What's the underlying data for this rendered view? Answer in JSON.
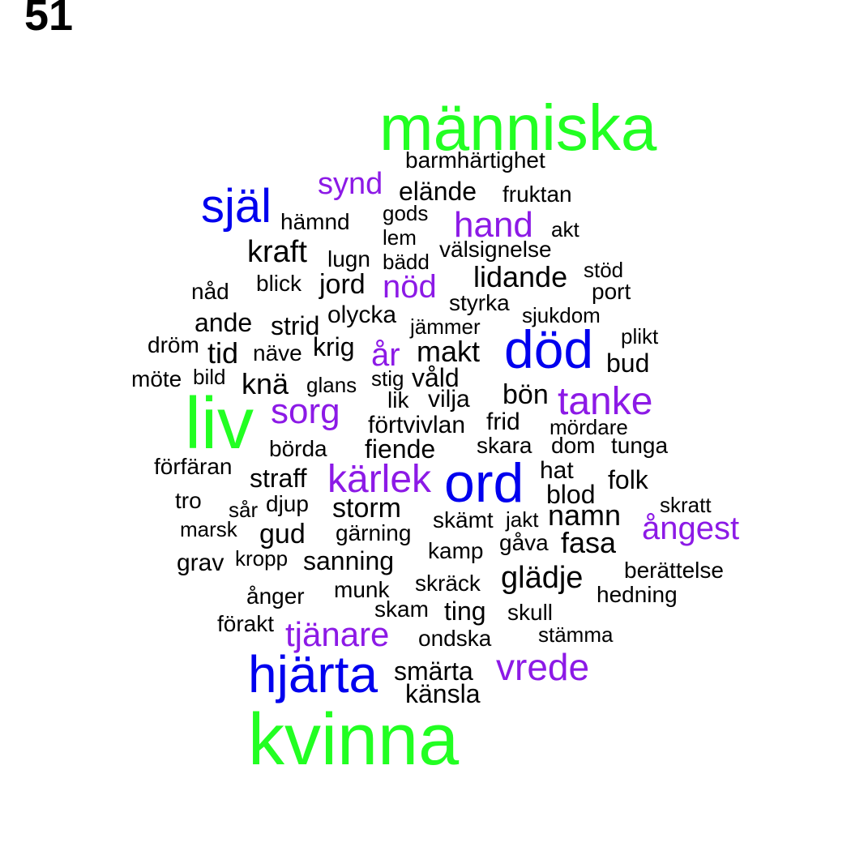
{
  "panel_label": "51",
  "colors": {
    "green": "#22ff22",
    "blue": "#0000ee",
    "purple": "#8c1ae6",
    "black": "#000000"
  },
  "words": [
    {
      "text": "människa",
      "color": "green"
    },
    {
      "text": "barmhärtighet",
      "color": "black"
    },
    {
      "text": "synd",
      "color": "purple"
    },
    {
      "text": "elände",
      "color": "black"
    },
    {
      "text": "fruktan",
      "color": "black"
    },
    {
      "text": "själ",
      "color": "blue"
    },
    {
      "text": "gods",
      "color": "black"
    },
    {
      "text": "hand",
      "color": "purple"
    },
    {
      "text": "hämnd",
      "color": "black"
    },
    {
      "text": "akt",
      "color": "black"
    },
    {
      "text": "lem",
      "color": "black"
    },
    {
      "text": "välsignelse",
      "color": "black"
    },
    {
      "text": "kraft",
      "color": "black"
    },
    {
      "text": "lugn",
      "color": "black"
    },
    {
      "text": "bädd",
      "color": "black"
    },
    {
      "text": "stöd",
      "color": "black"
    },
    {
      "text": "lidande",
      "color": "black"
    },
    {
      "text": "blick",
      "color": "black"
    },
    {
      "text": "jord",
      "color": "black"
    },
    {
      "text": "nöd",
      "color": "purple"
    },
    {
      "text": "nåd",
      "color": "black"
    },
    {
      "text": "port",
      "color": "black"
    },
    {
      "text": "styrka",
      "color": "black"
    },
    {
      "text": "olycka",
      "color": "black"
    },
    {
      "text": "sjukdom",
      "color": "black"
    },
    {
      "text": "ande",
      "color": "black"
    },
    {
      "text": "strid",
      "color": "black"
    },
    {
      "text": "jämmer",
      "color": "black"
    },
    {
      "text": "plikt",
      "color": "black"
    },
    {
      "text": "död",
      "color": "blue"
    },
    {
      "text": "dröm",
      "color": "black"
    },
    {
      "text": "krig",
      "color": "black"
    },
    {
      "text": "tid",
      "color": "black"
    },
    {
      "text": "näve",
      "color": "black"
    },
    {
      "text": "år",
      "color": "purple"
    },
    {
      "text": "makt",
      "color": "black"
    },
    {
      "text": "bud",
      "color": "black"
    },
    {
      "text": "möte",
      "color": "black"
    },
    {
      "text": "bild",
      "color": "black"
    },
    {
      "text": "knä",
      "color": "black"
    },
    {
      "text": "glans",
      "color": "black"
    },
    {
      "text": "stig",
      "color": "black"
    },
    {
      "text": "våld",
      "color": "black"
    },
    {
      "text": "bön",
      "color": "black"
    },
    {
      "text": "tanke",
      "color": "purple"
    },
    {
      "text": "liv",
      "color": "green"
    },
    {
      "text": "lik",
      "color": "black"
    },
    {
      "text": "vilja",
      "color": "black"
    },
    {
      "text": "sorg",
      "color": "purple"
    },
    {
      "text": "förtvivlan",
      "color": "black"
    },
    {
      "text": "frid",
      "color": "black"
    },
    {
      "text": "mördare",
      "color": "black"
    },
    {
      "text": "börda",
      "color": "black"
    },
    {
      "text": "fiende",
      "color": "black"
    },
    {
      "text": "skara",
      "color": "black"
    },
    {
      "text": "dom",
      "color": "black"
    },
    {
      "text": "tunga",
      "color": "black"
    },
    {
      "text": "förfäran",
      "color": "black"
    },
    {
      "text": "hat",
      "color": "black"
    },
    {
      "text": "straff",
      "color": "black"
    },
    {
      "text": "kärlek",
      "color": "purple"
    },
    {
      "text": "ord",
      "color": "blue"
    },
    {
      "text": "folk",
      "color": "black"
    },
    {
      "text": "blod",
      "color": "black"
    },
    {
      "text": "tro",
      "color": "black"
    },
    {
      "text": "skratt",
      "color": "black"
    },
    {
      "text": "sår",
      "color": "black"
    },
    {
      "text": "djup",
      "color": "black"
    },
    {
      "text": "storm",
      "color": "black"
    },
    {
      "text": "skämt",
      "color": "black"
    },
    {
      "text": "jakt",
      "color": "black"
    },
    {
      "text": "namn",
      "color": "black"
    },
    {
      "text": "ångest",
      "color": "purple"
    },
    {
      "text": "marsk",
      "color": "black"
    },
    {
      "text": "gud",
      "color": "black"
    },
    {
      "text": "gärning",
      "color": "black"
    },
    {
      "text": "gåva",
      "color": "black"
    },
    {
      "text": "fasa",
      "color": "black"
    },
    {
      "text": "kamp",
      "color": "black"
    },
    {
      "text": "grav",
      "color": "black"
    },
    {
      "text": "kropp",
      "color": "black"
    },
    {
      "text": "sanning",
      "color": "black"
    },
    {
      "text": "berättelse",
      "color": "black"
    },
    {
      "text": "glädje",
      "color": "black"
    },
    {
      "text": "skräck",
      "color": "black"
    },
    {
      "text": "munk",
      "color": "black"
    },
    {
      "text": "hedning",
      "color": "black"
    },
    {
      "text": "ånger",
      "color": "black"
    },
    {
      "text": "skam",
      "color": "black"
    },
    {
      "text": "ting",
      "color": "black"
    },
    {
      "text": "skull",
      "color": "black"
    },
    {
      "text": "förakt",
      "color": "black"
    },
    {
      "text": "tjänare",
      "color": "purple"
    },
    {
      "text": "stämma",
      "color": "black"
    },
    {
      "text": "ondska",
      "color": "black"
    },
    {
      "text": "vrede",
      "color": "purple"
    },
    {
      "text": "hjärta",
      "color": "blue"
    },
    {
      "text": "smärta",
      "color": "black"
    },
    {
      "text": "känsla",
      "color": "black"
    },
    {
      "text": "kvinna",
      "color": "green"
    }
  ]
}
